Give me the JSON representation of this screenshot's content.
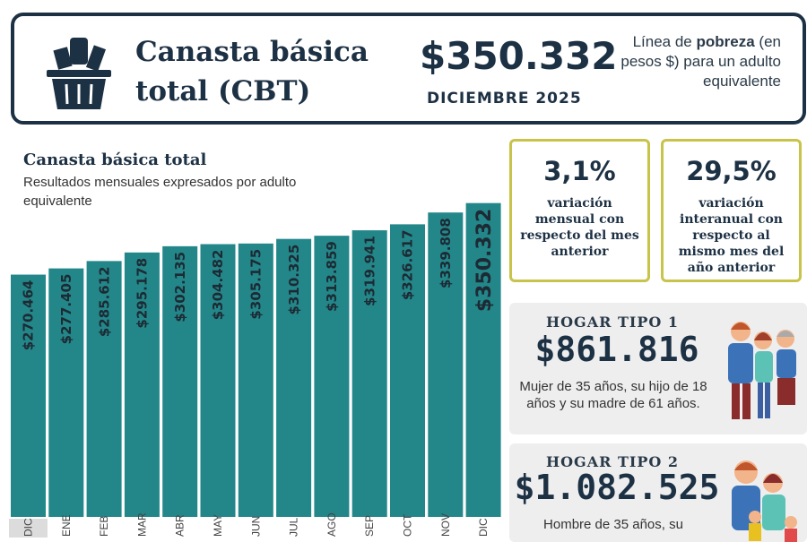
{
  "header": {
    "title_line1": "Canasta básica",
    "title_line2": "total (CBT)",
    "value": "$350.332",
    "date": "DICIEMBRE 2025",
    "desc_pre": "Línea de",
    "desc_bold": "pobreza",
    "desc_post": "(en pesos $) para un adulto equivalente",
    "icon": "shopping-basket-icon"
  },
  "chart_data": {
    "type": "bar",
    "title": "Canasta básica total",
    "subtitle": "Resultados mensuales expresados por adulto equivalente",
    "categories": [
      "DIC",
      "ENE",
      "FEB",
      "MAR",
      "ABR",
      "MAY",
      "JUN",
      "JUL",
      "AGO",
      "SEP",
      "OCT",
      "NOV",
      "DIC"
    ],
    "values": [
      270464,
      277405,
      285612,
      295178,
      302135,
      304482,
      305175,
      310325,
      313859,
      319941,
      326617,
      339808,
      350332
    ],
    "labels": [
      "$270.464",
      "$277.405",
      "$285.612",
      "$295.178",
      "$302.135",
      "$304.482",
      "$305.175",
      "$310.325",
      "$313.859",
      "$319.941",
      "$326.617",
      "$339.808",
      "$350.332"
    ],
    "bar_color": "#23878a",
    "grid": false
  },
  "stats": [
    {
      "value": "3,1%",
      "text": "variación mensual con respecto del mes anterior"
    },
    {
      "value": "29,5%",
      "text": "variación interanual con respecto al mismo mes del año anterior"
    }
  ],
  "hogares": [
    {
      "label": "HOGAR TIPO 1",
      "value": "$861.816",
      "desc": "Mujer de 35 años, su hijo de 18 años y su madre de 61 años."
    },
    {
      "label": "HOGAR TIPO 2",
      "value": "$1.082.525",
      "desc": "Hombre de 35 años, su"
    }
  ]
}
